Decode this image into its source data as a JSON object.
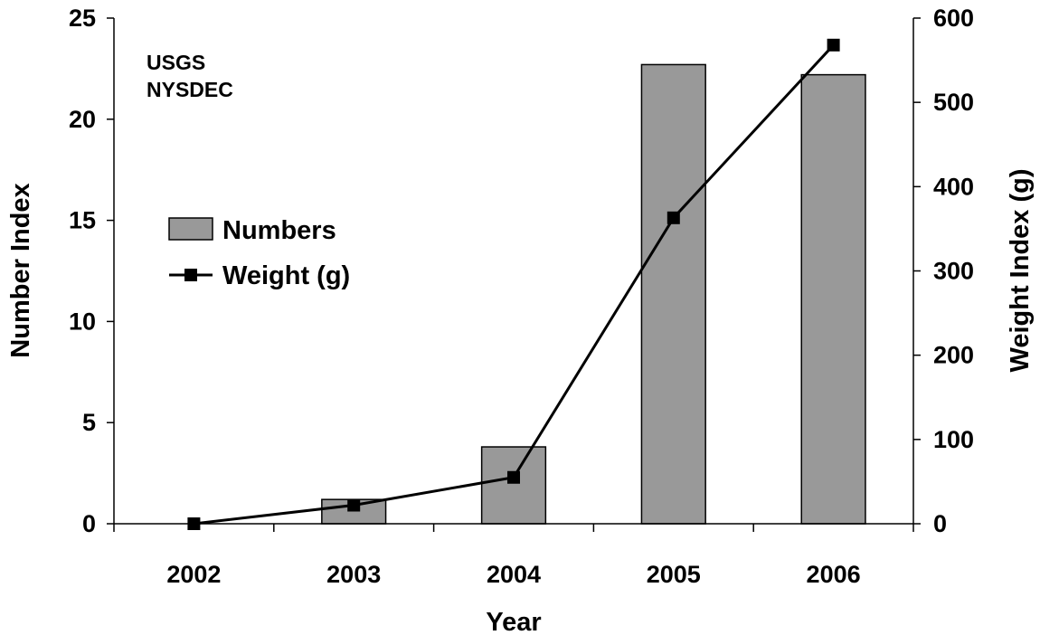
{
  "chart_data": {
    "type": "bar",
    "categories": [
      "2002",
      "2003",
      "2004",
      "2005",
      "2006"
    ],
    "series": [
      {
        "name": "Numbers",
        "type": "bar",
        "axis": "left",
        "values": [
          0,
          1.2,
          3.8,
          22.7,
          22.2
        ],
        "color": "#999999"
      },
      {
        "name": "Weight (g)",
        "type": "line",
        "axis": "right",
        "values": [
          0,
          22,
          55,
          363,
          568
        ],
        "color": "#000000"
      }
    ],
    "xlabel": "Year",
    "ylabel": "Number Index",
    "y2label": "Weight Index (g)",
    "ylim": [
      0,
      25
    ],
    "y2lim": [
      0,
      600
    ],
    "yticks": [
      "0",
      "5",
      "10",
      "15",
      "20",
      "25"
    ],
    "y2ticks": [
      "0",
      "100",
      "200",
      "300",
      "400",
      "500",
      "600"
    ],
    "annotations": [
      "USGS",
      "NYSDEC"
    ],
    "legend": {
      "position": "left",
      "entries": [
        "Numbers",
        "Weight (g)"
      ]
    },
    "grid": false
  }
}
